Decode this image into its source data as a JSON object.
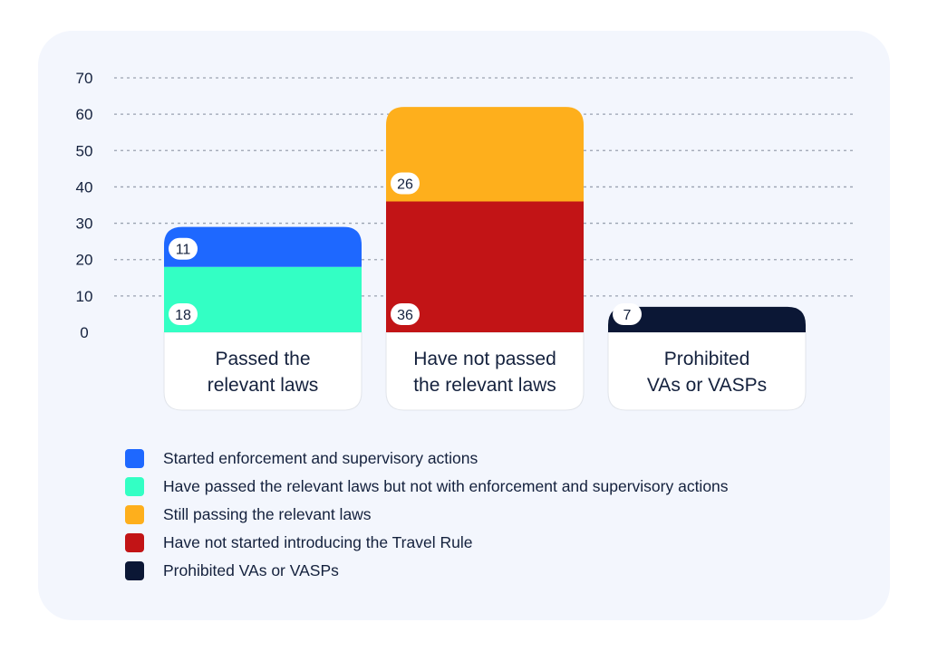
{
  "chart_data": {
    "type": "bar",
    "stacked": true,
    "categories": [
      [
        "Passed the",
        "relevant laws"
      ],
      [
        "Have not passed",
        "the relevant laws"
      ],
      [
        "Prohibited",
        "VAs or VASPs"
      ]
    ],
    "series": [
      {
        "name": "Have passed the relevant laws but not with enforcement and supervisory actions",
        "color": "#33ffc4",
        "values": [
          18,
          null,
          null
        ]
      },
      {
        "name": "Started enforcement and supervisory actions",
        "color": "#1e68ff",
        "values": [
          11,
          null,
          null
        ]
      },
      {
        "name": "Have not started introducing the Travel Rule",
        "color": "#c21416",
        "values": [
          null,
          36,
          null
        ]
      },
      {
        "name": "Still passing the relevant laws",
        "color": "#feaf1c",
        "values": [
          null,
          26,
          null
        ]
      },
      {
        "name": "Prohibited VAs or VASPs",
        "color": "#0b1735",
        "values": [
          null,
          null,
          7
        ]
      }
    ],
    "ylim": [
      0,
      70
    ],
    "yticks": [
      0,
      10,
      20,
      30,
      40,
      50,
      60,
      70
    ],
    "grid": true,
    "xlabel": "",
    "ylabel": "",
    "legend_position": "bottom",
    "legend": [
      {
        "label": "Started enforcement and supervisory actions",
        "color": "#1e68ff"
      },
      {
        "label": "Have passed the relevant laws but not with enforcement and supervisory actions",
        "color": "#33ffc4"
      },
      {
        "label": "Still passing the relevant laws",
        "color": "#feaf1c"
      },
      {
        "label": "Have not started introducing the Travel Rule",
        "color": "#c21416"
      },
      {
        "label": "Prohibited VAs or VASPs",
        "color": "#0b1735"
      }
    ]
  }
}
